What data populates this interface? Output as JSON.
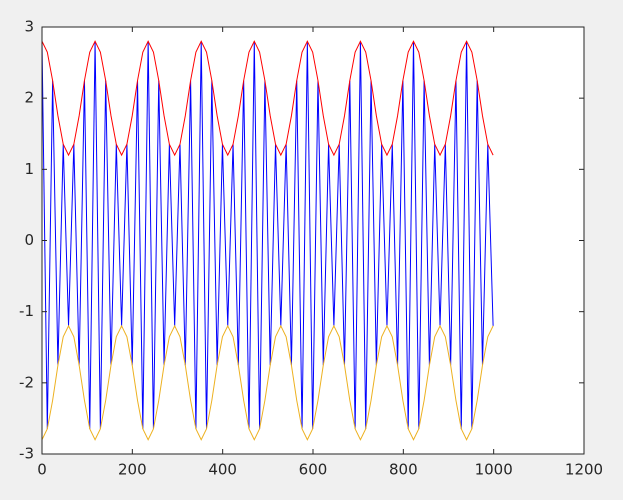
{
  "chart_data": {
    "type": "line",
    "x": [
      0,
      11.75,
      23.5,
      35.25,
      47,
      58.75,
      70.5,
      82.25,
      94,
      105.75,
      117.5,
      129.25,
      141,
      152.75,
      164.5,
      176.25,
      188,
      199.75,
      211.5,
      223.25,
      235,
      246.75,
      258.5,
      270.25,
      282,
      293.75,
      305.5,
      317.25,
      329,
      340.75,
      352.5,
      364.25,
      376,
      387.75,
      399.5,
      411.25,
      423,
      434.75,
      446.5,
      458.25,
      470,
      481.75,
      493.5,
      505.25,
      517,
      528.75,
      540.5,
      552.25,
      564,
      575.75,
      587.5,
      599.25,
      611,
      622.75,
      634.5,
      646.25,
      658,
      669.75,
      681.5,
      693.25,
      705,
      716.75,
      728.5,
      740.25,
      752,
      763.75,
      775.5,
      787.25,
      799,
      810.75,
      822.5,
      834.25,
      846,
      857.75,
      869.5,
      881.25,
      893,
      904.75,
      916.5,
      928.25,
      940,
      951.75,
      963.5,
      975.25,
      987,
      998.75
    ],
    "series": [
      {
        "color": "#0000ff",
        "values": [
          2.8,
          -2.647,
          2.247,
          -1.753,
          1.353,
          -1.2,
          1.353,
          -1.753,
          2.247,
          -2.647,
          2.8,
          -2.647,
          2.247,
          -1.753,
          1.353,
          -1.2,
          1.353,
          -1.753,
          2.247,
          -2.647,
          2.8,
          -2.647,
          2.247,
          -1.753,
          1.353,
          -1.2,
          1.353,
          -1.753,
          2.247,
          -2.647,
          2.8,
          -2.647,
          2.247,
          -1.753,
          1.353,
          -1.2,
          1.353,
          -1.753,
          2.247,
          -2.647,
          2.8,
          -2.647,
          2.247,
          -1.753,
          1.353,
          -1.2,
          1.353,
          -1.753,
          2.247,
          -2.647,
          2.8,
          -2.647,
          2.247,
          -1.753,
          1.353,
          -1.2,
          1.353,
          -1.753,
          2.247,
          -2.647,
          2.8,
          -2.647,
          2.247,
          -1.753,
          1.353,
          -1.2,
          1.353,
          -1.753,
          2.247,
          -2.647,
          2.8,
          -2.647,
          2.247,
          -1.753,
          1.353,
          -1.2,
          1.353,
          -1.753,
          2.247,
          -2.647,
          2.8,
          -2.647,
          2.247,
          -1.753,
          1.353,
          -1.2
        ]
      },
      {
        "color": "#ff0000",
        "values": [
          2.8,
          2.647,
          2.247,
          1.753,
          1.353,
          1.2,
          1.353,
          1.753,
          2.247,
          2.647,
          2.8,
          2.647,
          2.247,
          1.753,
          1.353,
          1.2,
          1.353,
          1.753,
          2.247,
          2.647,
          2.8,
          2.647,
          2.247,
          1.753,
          1.353,
          1.2,
          1.353,
          1.753,
          2.247,
          2.647,
          2.8,
          2.647,
          2.247,
          1.753,
          1.353,
          1.2,
          1.353,
          1.753,
          2.247,
          2.647,
          2.8,
          2.647,
          2.247,
          1.753,
          1.353,
          1.2,
          1.353,
          1.753,
          2.247,
          2.647,
          2.8,
          2.647,
          2.247,
          1.753,
          1.353,
          1.2,
          1.353,
          1.753,
          2.247,
          2.647,
          2.8,
          2.647,
          2.247,
          1.753,
          1.353,
          1.2,
          1.353,
          1.753,
          2.247,
          2.647,
          2.8,
          2.647,
          2.247,
          1.753,
          1.353,
          1.2,
          1.353,
          1.753,
          2.247,
          2.647,
          2.8,
          2.647,
          2.247,
          1.753,
          1.353,
          1.2
        ]
      },
      {
        "color": "#edb120",
        "values": [
          -2.8,
          -2.647,
          -2.247,
          -1.753,
          -1.353,
          -1.2,
          -1.353,
          -1.753,
          -2.247,
          -2.647,
          -2.8,
          -2.647,
          -2.247,
          -1.753,
          -1.353,
          -1.2,
          -1.353,
          -1.753,
          -2.247,
          -2.647,
          -2.8,
          -2.647,
          -2.247,
          -1.753,
          -1.353,
          -1.2,
          -1.353,
          -1.753,
          -2.247,
          -2.647,
          -2.8,
          -2.647,
          -2.247,
          -1.753,
          -1.353,
          -1.2,
          -1.353,
          -1.753,
          -2.247,
          -2.647,
          -2.8,
          -2.647,
          -2.247,
          -1.753,
          -1.353,
          -1.2,
          -1.353,
          -1.753,
          -2.247,
          -2.647,
          -2.8,
          -2.647,
          -2.247,
          -1.753,
          -1.353,
          -1.2,
          -1.353,
          -1.753,
          -2.247,
          -2.647,
          -2.8,
          -2.647,
          -2.247,
          -1.753,
          -1.353,
          -1.2,
          -1.353,
          -1.753,
          -2.247,
          -2.647,
          -2.8,
          -2.647,
          -2.247,
          -1.753,
          -1.353,
          -1.2,
          -1.353,
          -1.753,
          -2.247,
          -2.647,
          -2.8,
          -2.647,
          -2.247,
          -1.753,
          -1.353,
          -1.2
        ]
      }
    ],
    "xlim": [
      0,
      1200
    ],
    "xticks": [
      0,
      200,
      400,
      600,
      800,
      1000,
      1200
    ],
    "ylim": [
      -3,
      3
    ],
    "yticks": [
      -3,
      -2,
      -1,
      0,
      1,
      2,
      3
    ],
    "grid": false
  }
}
